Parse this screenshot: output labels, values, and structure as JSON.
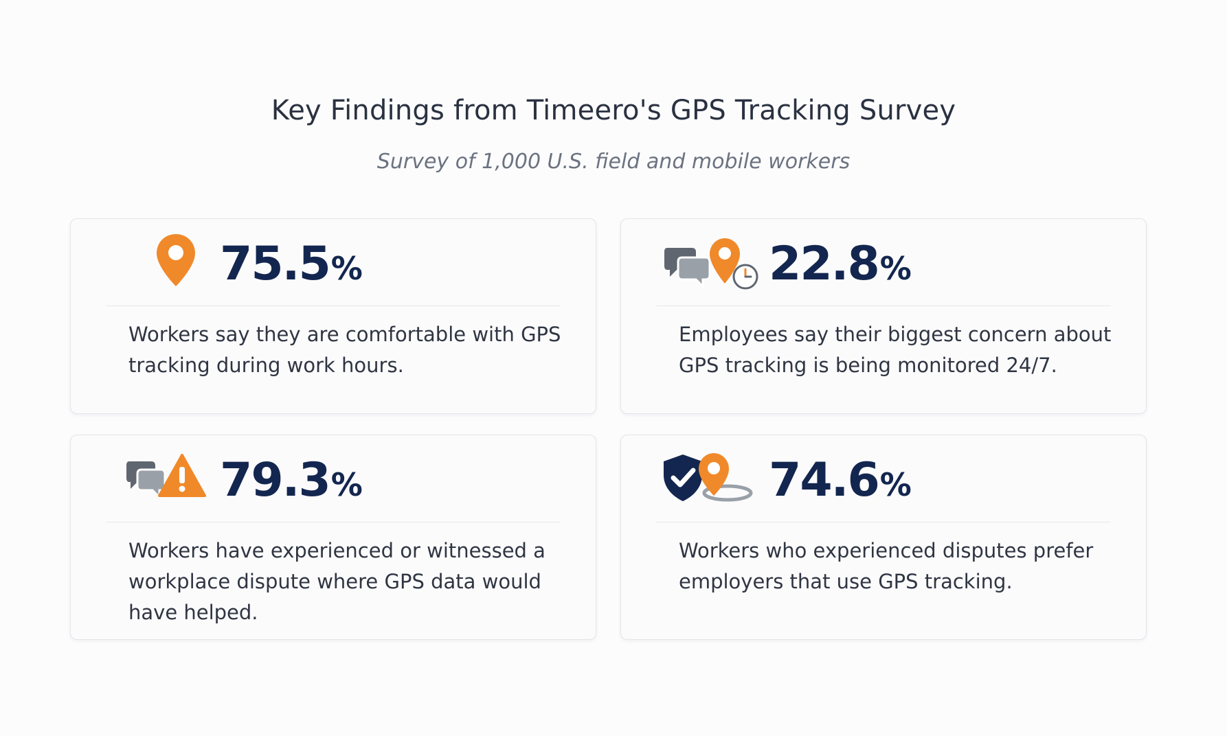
{
  "page": {
    "title": "Key Findings from Timeero's GPS Tracking Survey",
    "subtitle": "Survey of 1,000 U.S. field and mobile workers"
  },
  "colors": {
    "accent_orange": "#f0892a",
    "stat_navy": "#13264f",
    "icon_gray": "#5f6670",
    "card_border": "#e3e5ea"
  },
  "findings": [
    {
      "value": "75.5",
      "unit": "%",
      "description": "Workers say they are comfortable with GPS tracking during work hours.",
      "icons": [
        "location-pin-icon"
      ]
    },
    {
      "value": "22.8",
      "unit": "%",
      "description": "Employees say their biggest concern about GPS tracking is being monitored 24/7.",
      "icons": [
        "chat-bubbles-icon",
        "location-pin-icon",
        "clock-icon"
      ]
    },
    {
      "value": "79.3",
      "unit": "%",
      "description": "Workers have experienced or witnessed a workplace dispute where GPS data would have helped.",
      "icons": [
        "chat-bubbles-icon",
        "warning-icon"
      ]
    },
    {
      "value": "74.6",
      "unit": "%",
      "description": "Workers who experienced disputes prefer employers that use GPS tracking.",
      "icons": [
        "shield-check-icon",
        "location-pin-icon"
      ]
    }
  ]
}
